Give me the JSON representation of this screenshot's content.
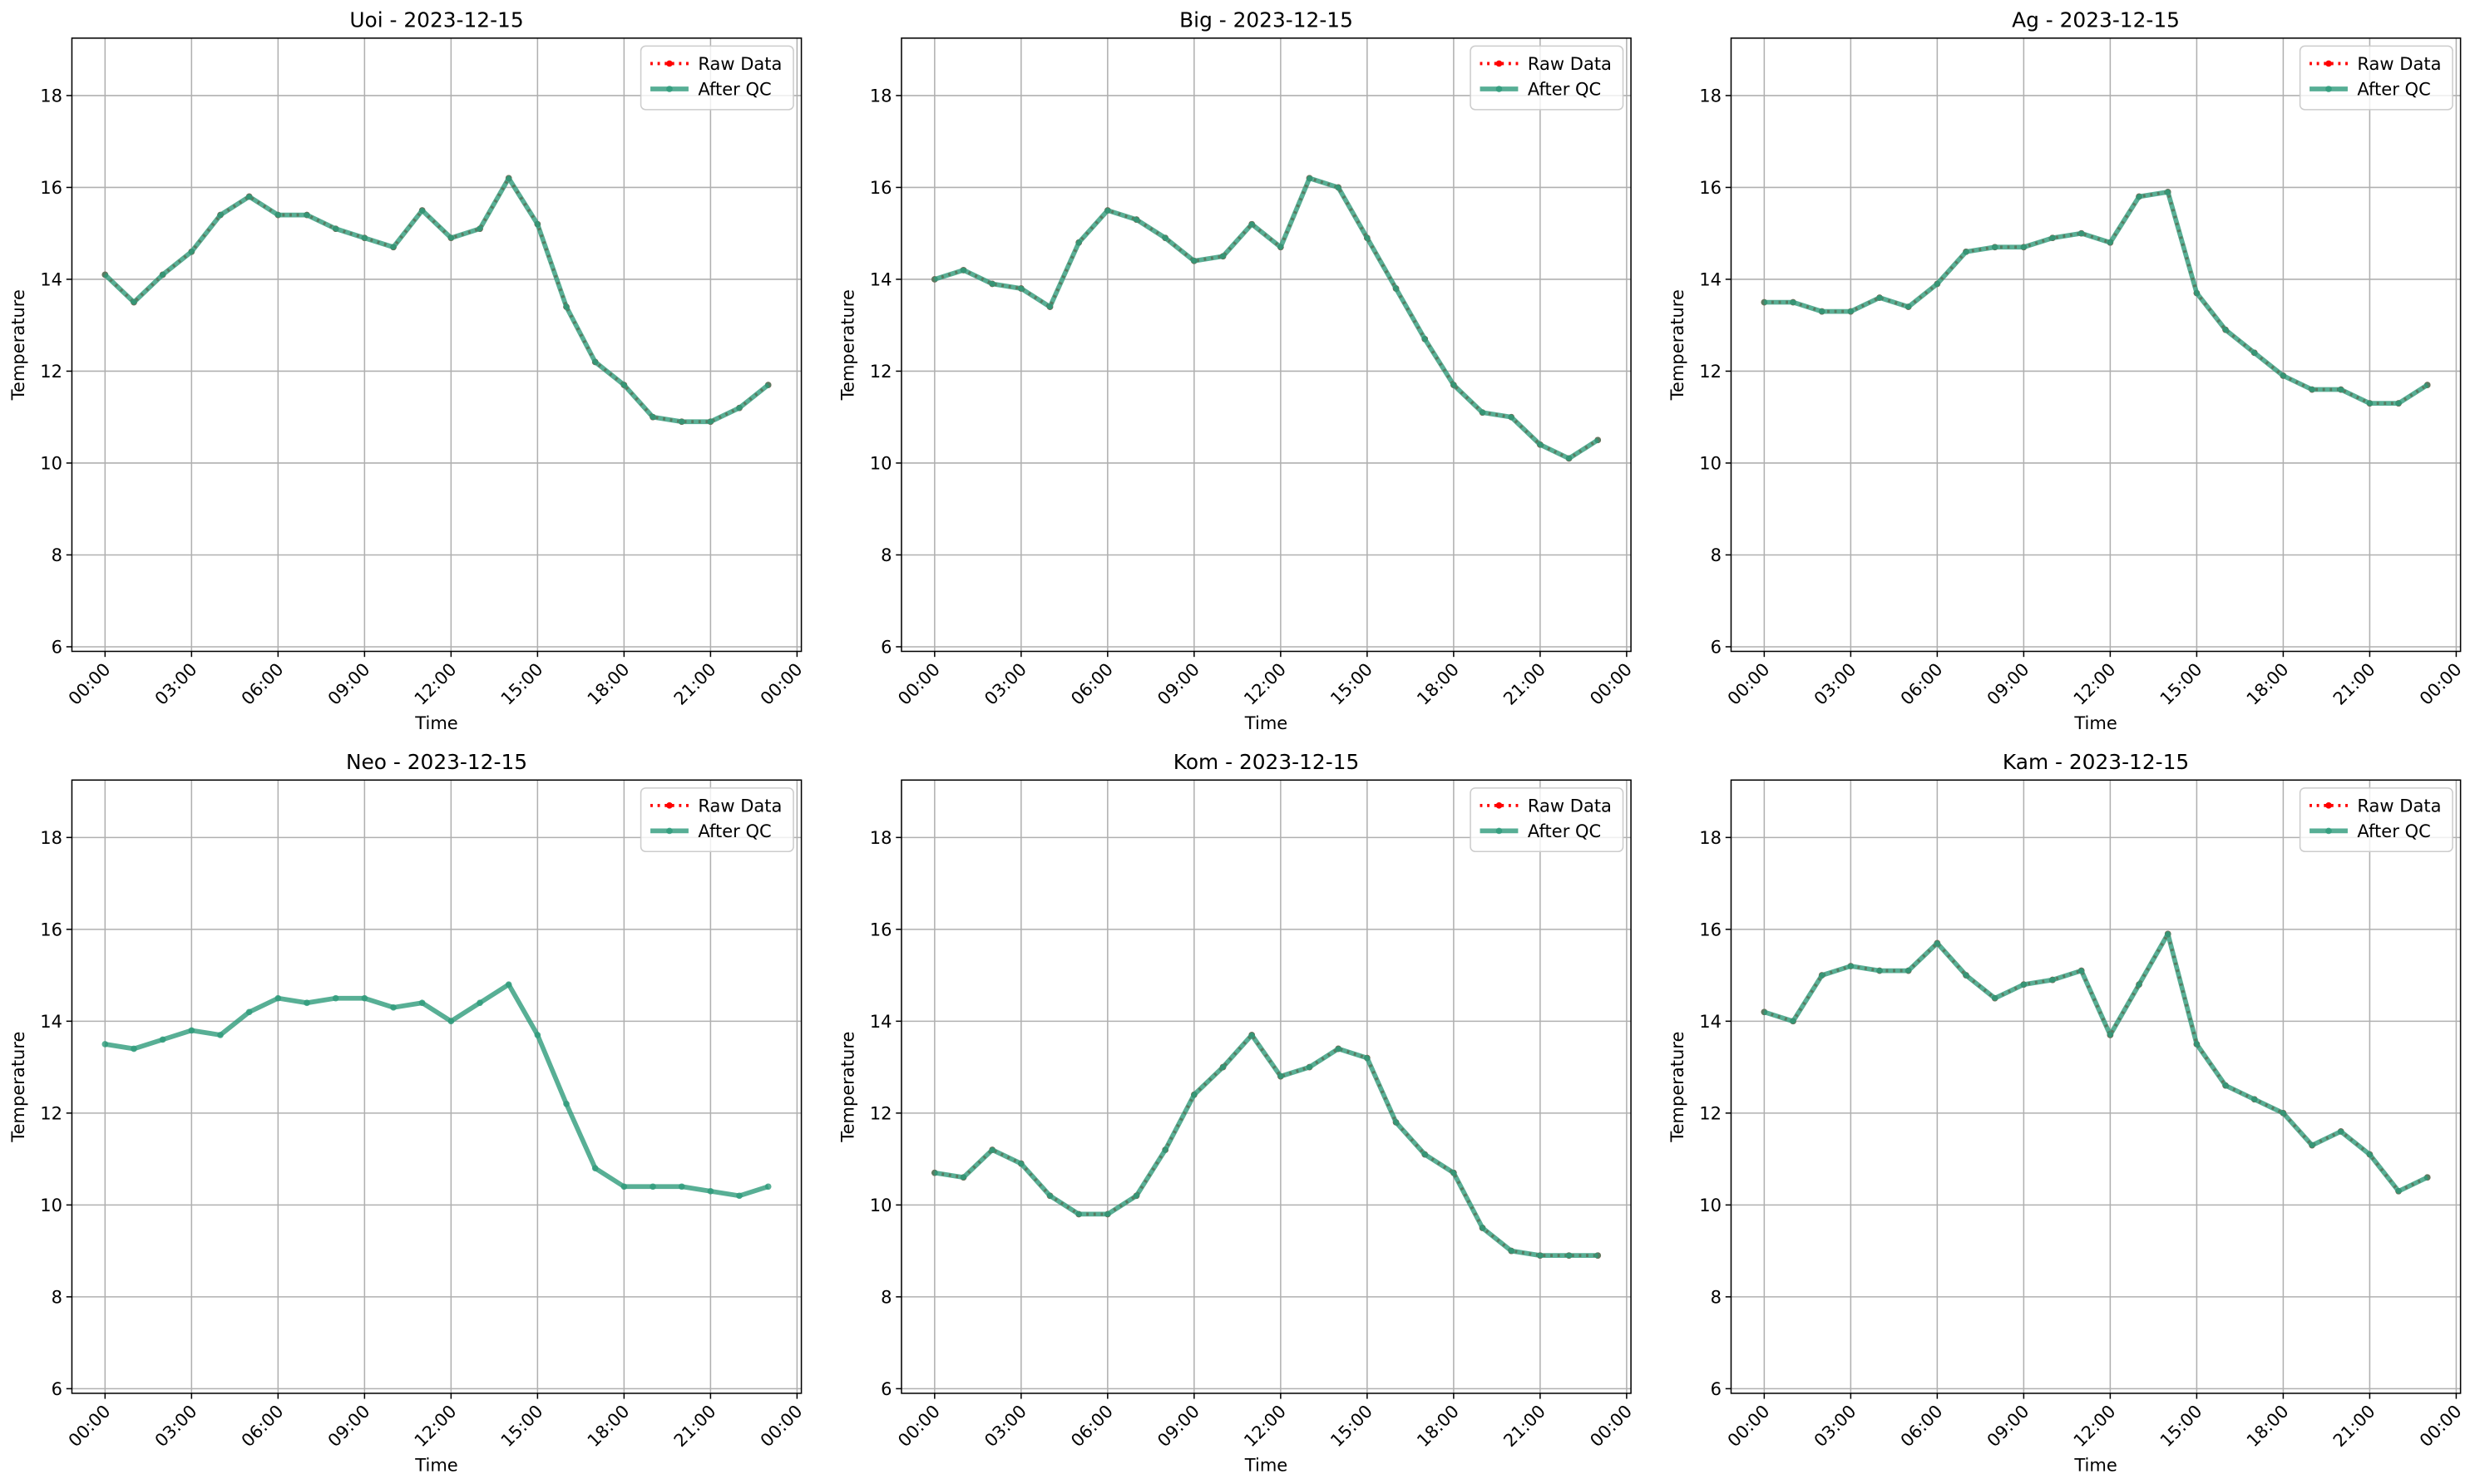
{
  "chart_data": [
    {
      "type": "line",
      "title": "Uoi - 2023-12-15",
      "xlabel": "Time",
      "ylabel": "Temperature",
      "x": [
        0,
        1,
        2,
        3,
        4,
        5,
        6,
        7,
        8,
        9,
        10,
        11,
        12,
        13,
        14,
        15,
        16,
        17,
        18,
        19,
        20,
        21,
        22,
        23
      ],
      "series": [
        {
          "name": "Raw Data",
          "color": "#ff0000",
          "values": [
            14.1,
            13.5,
            14.1,
            14.6,
            15.4,
            15.8,
            15.4,
            15.4,
            15.1,
            14.9,
            14.7,
            15.5,
            14.9,
            15.1,
            16.2,
            15.2,
            13.4,
            12.2,
            11.7,
            11.0,
            10.9,
            10.9,
            11.2,
            11.7
          ]
        },
        {
          "name": "After QC",
          "color": "#2e9b7b",
          "values": [
            14.1,
            13.5,
            14.1,
            14.6,
            15.4,
            15.8,
            15.4,
            15.4,
            15.1,
            14.9,
            14.7,
            15.5,
            14.9,
            15.1,
            16.2,
            15.2,
            13.4,
            12.2,
            11.7,
            11.0,
            10.9,
            10.9,
            11.2,
            11.7
          ]
        }
      ],
      "xlim": [
        -1.15,
        24.15
      ],
      "ylim": [
        5.9,
        19.25
      ],
      "xticks": [
        {
          "value": 0,
          "label": "00:00"
        },
        {
          "value": 3,
          "label": "03:00"
        },
        {
          "value": 6,
          "label": "06:00"
        },
        {
          "value": 9,
          "label": "09:00"
        },
        {
          "value": 12,
          "label": "12:00"
        },
        {
          "value": 15,
          "label": "15:00"
        },
        {
          "value": 18,
          "label": "18:00"
        },
        {
          "value": 21,
          "label": "21:00"
        },
        {
          "value": 24,
          "label": "00:00"
        }
      ],
      "yticks": [
        6,
        8,
        10,
        12,
        14,
        16,
        18
      ],
      "grid": true,
      "legend": "upper right"
    },
    {
      "type": "line",
      "title": "Big - 2023-12-15",
      "xlabel": "Time",
      "ylabel": "Temperature",
      "x": [
        0,
        1,
        2,
        3,
        4,
        5,
        6,
        7,
        8,
        9,
        10,
        11,
        12,
        13,
        14,
        15,
        16,
        17,
        18,
        19,
        20,
        21,
        22,
        23
      ],
      "series": [
        {
          "name": "Raw Data",
          "color": "#ff0000",
          "values": [
            14.0,
            14.2,
            13.9,
            13.8,
            13.4,
            14.8,
            15.5,
            15.3,
            14.9,
            14.4,
            14.5,
            15.2,
            14.7,
            16.2,
            16.0,
            14.9,
            13.8,
            12.7,
            11.7,
            11.1,
            11.0,
            10.4,
            10.1,
            10.5
          ]
        },
        {
          "name": "After QC",
          "color": "#2e9b7b",
          "values": [
            14.0,
            14.2,
            13.9,
            13.8,
            13.4,
            14.8,
            15.5,
            15.3,
            14.9,
            14.4,
            14.5,
            15.2,
            14.7,
            16.2,
            16.0,
            14.9,
            13.8,
            12.7,
            11.7,
            11.1,
            11.0,
            10.4,
            10.1,
            10.5
          ]
        }
      ],
      "xlim": [
        -1.15,
        24.15
      ],
      "ylim": [
        5.9,
        19.25
      ],
      "xticks": [
        {
          "value": 0,
          "label": "00:00"
        },
        {
          "value": 3,
          "label": "03:00"
        },
        {
          "value": 6,
          "label": "06:00"
        },
        {
          "value": 9,
          "label": "09:00"
        },
        {
          "value": 12,
          "label": "12:00"
        },
        {
          "value": 15,
          "label": "15:00"
        },
        {
          "value": 18,
          "label": "18:00"
        },
        {
          "value": 21,
          "label": "21:00"
        },
        {
          "value": 24,
          "label": "00:00"
        }
      ],
      "yticks": [
        6,
        8,
        10,
        12,
        14,
        16,
        18
      ],
      "grid": true,
      "legend": "upper right"
    },
    {
      "type": "line",
      "title": "Ag - 2023-12-15",
      "xlabel": "Time",
      "ylabel": "Temperature",
      "x": [
        0,
        1,
        2,
        3,
        4,
        5,
        6,
        7,
        8,
        9,
        10,
        11,
        12,
        13,
        14,
        15,
        16,
        17,
        18,
        19,
        20,
        21,
        22,
        23
      ],
      "series": [
        {
          "name": "Raw Data",
          "color": "#ff0000",
          "values": [
            13.5,
            13.5,
            13.3,
            13.3,
            13.6,
            13.4,
            13.9,
            14.6,
            14.7,
            14.7,
            14.9,
            15.0,
            14.8,
            15.8,
            15.9,
            13.7,
            12.9,
            12.4,
            11.9,
            11.6,
            11.6,
            11.3,
            11.3,
            11.7
          ]
        },
        {
          "name": "After QC",
          "color": "#2e9b7b",
          "values": [
            13.5,
            13.5,
            13.3,
            13.3,
            13.6,
            13.4,
            13.9,
            14.6,
            14.7,
            14.7,
            14.9,
            15.0,
            14.8,
            15.8,
            15.9,
            13.7,
            12.9,
            12.4,
            11.9,
            11.6,
            11.6,
            11.3,
            11.3,
            11.7
          ]
        }
      ],
      "xlim": [
        -1.15,
        24.15
      ],
      "ylim": [
        5.9,
        19.25
      ],
      "xticks": [
        {
          "value": 0,
          "label": "00:00"
        },
        {
          "value": 3,
          "label": "03:00"
        },
        {
          "value": 6,
          "label": "06:00"
        },
        {
          "value": 9,
          "label": "09:00"
        },
        {
          "value": 12,
          "label": "12:00"
        },
        {
          "value": 15,
          "label": "15:00"
        },
        {
          "value": 18,
          "label": "18:00"
        },
        {
          "value": 21,
          "label": "21:00"
        },
        {
          "value": 24,
          "label": "00:00"
        }
      ],
      "yticks": [
        6,
        8,
        10,
        12,
        14,
        16,
        18
      ],
      "grid": true,
      "legend": "upper right"
    },
    {
      "type": "line",
      "title": "Neo - 2023-12-15",
      "xlabel": "Time",
      "ylabel": "Temperature",
      "x": [
        0,
        1,
        2,
        3,
        4,
        5,
        6,
        7,
        8,
        9,
        10,
        11,
        12,
        13,
        14,
        15,
        16,
        17,
        18,
        19,
        20,
        21,
        22,
        23
      ],
      "series": [
        {
          "name": "Raw Data",
          "color": "#ff0000",
          "values": [
            null,
            null,
            null,
            null,
            null,
            null,
            null,
            null,
            null,
            null,
            null,
            null,
            null,
            null,
            null,
            null,
            null,
            null,
            null,
            null,
            null,
            null,
            null,
            null
          ]
        },
        {
          "name": "After QC",
          "color": "#2e9b7b",
          "values": [
            13.5,
            13.4,
            13.6,
            13.8,
            13.7,
            14.2,
            14.5,
            14.4,
            14.5,
            14.5,
            14.3,
            14.4,
            14.0,
            14.4,
            14.8,
            13.7,
            12.2,
            10.8,
            10.4,
            10.4,
            10.4,
            10.3,
            10.2,
            10.4
          ]
        }
      ],
      "xlim": [
        -1.15,
        24.15
      ],
      "ylim": [
        5.9,
        19.25
      ],
      "xticks": [
        {
          "value": 0,
          "label": "00:00"
        },
        {
          "value": 3,
          "label": "03:00"
        },
        {
          "value": 6,
          "label": "06:00"
        },
        {
          "value": 9,
          "label": "09:00"
        },
        {
          "value": 12,
          "label": "12:00"
        },
        {
          "value": 15,
          "label": "15:00"
        },
        {
          "value": 18,
          "label": "18:00"
        },
        {
          "value": 21,
          "label": "21:00"
        },
        {
          "value": 24,
          "label": "00:00"
        }
      ],
      "yticks": [
        6,
        8,
        10,
        12,
        14,
        16,
        18
      ],
      "grid": true,
      "legend": "upper right"
    },
    {
      "type": "line",
      "title": "Kom - 2023-12-15",
      "xlabel": "Time",
      "ylabel": "Temperature",
      "x": [
        0,
        1,
        2,
        3,
        4,
        5,
        6,
        7,
        8,
        9,
        10,
        11,
        12,
        13,
        14,
        15,
        16,
        17,
        18,
        19,
        20,
        21,
        22,
        23
      ],
      "series": [
        {
          "name": "Raw Data",
          "color": "#ff0000",
          "values": [
            10.7,
            10.6,
            11.2,
            10.9,
            10.2,
            9.8,
            9.8,
            10.2,
            11.2,
            12.4,
            13.0,
            13.7,
            12.8,
            13.0,
            13.4,
            13.2,
            11.8,
            11.1,
            10.7,
            9.5,
            9.0,
            8.9,
            8.9,
            8.9
          ]
        },
        {
          "name": "After QC",
          "color": "#2e9b7b",
          "values": [
            10.7,
            10.6,
            11.2,
            10.9,
            10.2,
            9.8,
            9.8,
            10.2,
            11.2,
            12.4,
            13.0,
            13.7,
            12.8,
            13.0,
            13.4,
            13.2,
            11.8,
            11.1,
            10.7,
            9.5,
            9.0,
            8.9,
            8.9,
            8.9
          ]
        }
      ],
      "xlim": [
        -1.15,
        24.15
      ],
      "ylim": [
        5.9,
        19.25
      ],
      "xticks": [
        {
          "value": 0,
          "label": "00:00"
        },
        {
          "value": 3,
          "label": "03:00"
        },
        {
          "value": 6,
          "label": "06:00"
        },
        {
          "value": 9,
          "label": "09:00"
        },
        {
          "value": 12,
          "label": "12:00"
        },
        {
          "value": 15,
          "label": "15:00"
        },
        {
          "value": 18,
          "label": "18:00"
        },
        {
          "value": 21,
          "label": "21:00"
        },
        {
          "value": 24,
          "label": "00:00"
        }
      ],
      "yticks": [
        6,
        8,
        10,
        12,
        14,
        16,
        18
      ],
      "grid": true,
      "legend": "upper right"
    },
    {
      "type": "line",
      "title": "Kam - 2023-12-15",
      "xlabel": "Time",
      "ylabel": "Temperature",
      "x": [
        0,
        1,
        2,
        3,
        4,
        5,
        6,
        7,
        8,
        9,
        10,
        11,
        12,
        13,
        14,
        15,
        16,
        17,
        18,
        19,
        20,
        21,
        22,
        23
      ],
      "series": [
        {
          "name": "Raw Data",
          "color": "#ff0000",
          "values": [
            14.2,
            14.0,
            15.0,
            15.2,
            15.1,
            15.1,
            15.7,
            15.0,
            14.5,
            14.8,
            14.9,
            15.1,
            13.7,
            14.8,
            15.9,
            13.5,
            12.6,
            12.3,
            12.0,
            11.3,
            11.6,
            11.1,
            10.3,
            10.6
          ]
        },
        {
          "name": "After QC",
          "color": "#2e9b7b",
          "values": [
            14.2,
            14.0,
            15.0,
            15.2,
            15.1,
            15.1,
            15.7,
            15.0,
            14.5,
            14.8,
            14.9,
            15.1,
            13.7,
            14.8,
            15.9,
            13.5,
            12.6,
            12.3,
            12.0,
            11.3,
            11.6,
            11.1,
            10.3,
            10.6
          ]
        }
      ],
      "xlim": [
        -1.15,
        24.15
      ],
      "ylim": [
        5.9,
        19.25
      ],
      "xticks": [
        {
          "value": 0,
          "label": "00:00"
        },
        {
          "value": 3,
          "label": "03:00"
        },
        {
          "value": 6,
          "label": "06:00"
        },
        {
          "value": 9,
          "label": "09:00"
        },
        {
          "value": 12,
          "label": "12:00"
        },
        {
          "value": 15,
          "label": "15:00"
        },
        {
          "value": 18,
          "label": "18:00"
        },
        {
          "value": 21,
          "label": "21:00"
        },
        {
          "value": 24,
          "label": "00:00"
        }
      ],
      "yticks": [
        6,
        8,
        10,
        12,
        14,
        16,
        18
      ],
      "grid": true,
      "legend": "upper right"
    }
  ]
}
